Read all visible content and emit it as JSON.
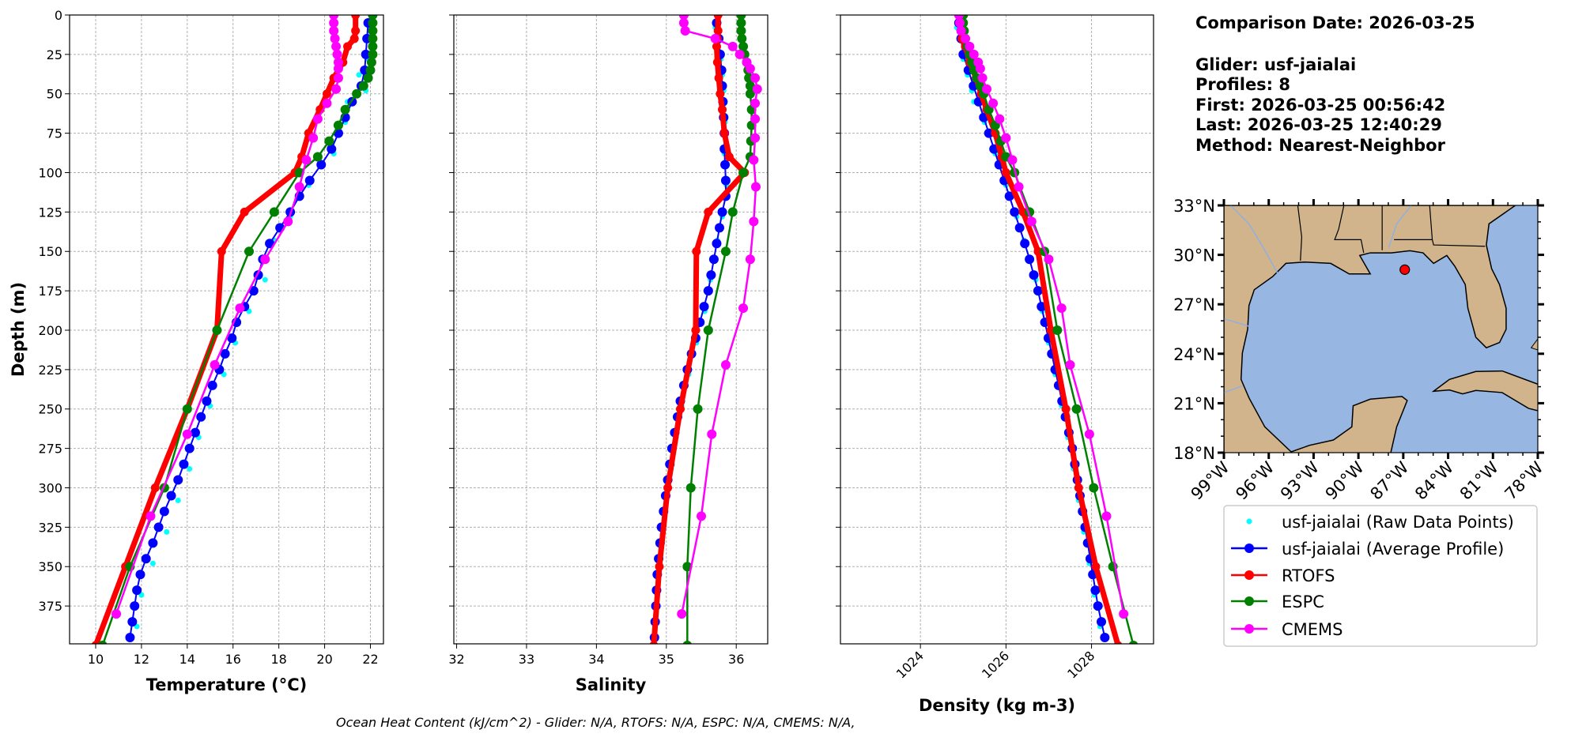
{
  "info": {
    "lines": [
      "Comparison Date: 2026-03-25",
      "",
      "Glider: usf-jaialai",
      "Profiles: 8",
      "First: 2026-03-25 00:56:42",
      "Last: 2026-03-25 12:40:29",
      "Method: Nearest-Neighbor"
    ]
  },
  "footnote": "Ocean Heat Content (kJ/cm^2) - Glider: N/A,  RTOFS: N/A,  ESPC: N/A,  CMEMS: N/A,",
  "colors": {
    "raw": "#00ffff",
    "average": "#0000ff",
    "rtofs": "#ff0000",
    "espc": "#008000",
    "cmems": "#ff00ff",
    "land": "#d2b48c",
    "water": "#97b6e1"
  },
  "legend": {
    "placement": "lower-right",
    "items": [
      {
        "key": "raw",
        "label": "usf-jaialai (Raw Data Points)",
        "style": "points"
      },
      {
        "key": "average",
        "label": "usf-jaialai (Average Profile)",
        "style": "line-marker"
      },
      {
        "key": "rtofs",
        "label": "RTOFS",
        "style": "line-marker"
      },
      {
        "key": "espc",
        "label": "ESPC",
        "style": "line-marker"
      },
      {
        "key": "cmems",
        "label": "CMEMS",
        "style": "line-marker"
      }
    ]
  },
  "map": {
    "type": "map",
    "lon_range": [
      -99,
      -78
    ],
    "lat_range": [
      18,
      33
    ],
    "lon_ticks": [
      "99°W",
      "96°W",
      "93°W",
      "90°W",
      "87°W",
      "84°W",
      "81°W",
      "78°W"
    ],
    "lat_ticks": [
      "18°N",
      "21°N",
      "24°N",
      "27°N",
      "30°N",
      "33°N"
    ],
    "glider_position": {
      "lon": -86.9,
      "lat": 29.1
    }
  },
  "chart_data": [
    {
      "type": "line",
      "panel": "temperature",
      "xlabel": "Temperature (°C)",
      "ylabel": "Depth (m)",
      "xlim": [
        8.86,
        22.57
      ],
      "ylim": [
        399,
        0
      ],
      "xticks": [
        10,
        12,
        14,
        16,
        18,
        20,
        22
      ],
      "yticks": [
        0,
        25,
        50,
        75,
        100,
        125,
        150,
        175,
        200,
        225,
        250,
        275,
        300,
        325,
        350,
        375
      ],
      "grid": true,
      "series": {
        "raw": {
          "depth": [
            8,
            28,
            38,
            48,
            55,
            68,
            88,
            108,
            128,
            143,
            168,
            188,
            208,
            228,
            248,
            268,
            288,
            308,
            328,
            348,
            368,
            388
          ],
          "values": [
            22.0,
            21.9,
            21.5,
            21.8,
            21.0,
            20.9,
            20.4,
            19.3,
            18.5,
            17.8,
            17.4,
            16.7,
            16.1,
            15.6,
            15.0,
            14.5,
            14.1,
            13.6,
            13.1,
            12.5,
            12.0,
            11.8
          ]
        },
        "average": {
          "depth": [
            5,
            15,
            25,
            35,
            45,
            55,
            65,
            75,
            85,
            95,
            105,
            115,
            125,
            135,
            145,
            155,
            165,
            175,
            185,
            195,
            205,
            215,
            225,
            235,
            245,
            255,
            265,
            275,
            285,
            295,
            305,
            315,
            325,
            335,
            345,
            355,
            365,
            375,
            385,
            395
          ],
          "values": [
            21.9,
            21.85,
            21.8,
            21.75,
            21.6,
            21.2,
            20.9,
            20.6,
            20.3,
            19.85,
            19.35,
            18.9,
            18.5,
            18.05,
            17.6,
            17.3,
            17.1,
            16.9,
            16.5,
            16.15,
            15.95,
            15.65,
            15.4,
            15.1,
            14.85,
            14.6,
            14.35,
            14.1,
            13.85,
            13.6,
            13.3,
            13.0,
            12.75,
            12.5,
            12.2,
            11.95,
            11.8,
            11.7,
            11.6,
            11.5
          ]
        },
        "rtofs": {
          "depth": [
            0,
            10,
            15,
            20,
            30,
            40,
            50,
            60,
            75,
            90,
            100,
            125,
            150,
            200,
            250,
            300,
            350,
            400
          ],
          "values": [
            21.35,
            21.35,
            21.3,
            21.0,
            20.8,
            20.4,
            20.1,
            19.8,
            19.3,
            19.0,
            18.7,
            16.5,
            15.5,
            15.3,
            14.0,
            12.6,
            11.3,
            10.0
          ]
        },
        "espc": {
          "depth": [
            0,
            5,
            10,
            15,
            20,
            25,
            30,
            35,
            40,
            45,
            50,
            60,
            70,
            80,
            90,
            100,
            125,
            150,
            200,
            250,
            300,
            350,
            400
          ],
          "values": [
            22.1,
            22.1,
            22.1,
            22.1,
            22.1,
            22.1,
            22.05,
            22.0,
            21.9,
            21.7,
            21.4,
            20.9,
            20.6,
            20.2,
            19.7,
            18.9,
            17.8,
            16.7,
            15.3,
            14.0,
            13.0,
            11.5,
            10.3
          ]
        },
        "cmems": {
          "depth": [
            0,
            5,
            10,
            15,
            20,
            25,
            30,
            34,
            40,
            47,
            56,
            66,
            78,
            92,
            109,
            131,
            155,
            186,
            222,
            266,
            318,
            380
          ],
          "values": [
            20.4,
            20.4,
            20.4,
            20.45,
            20.5,
            20.55,
            20.6,
            20.6,
            20.6,
            20.5,
            20.1,
            19.7,
            19.5,
            19.2,
            18.9,
            18.4,
            17.4,
            16.3,
            15.2,
            14.0,
            12.4,
            10.9
          ]
        }
      }
    },
    {
      "type": "line",
      "panel": "salinity",
      "xlabel": "Salinity",
      "xlim": [
        31.96,
        36.45
      ],
      "ylim": [
        399,
        0
      ],
      "xticks": [
        32,
        33,
        34,
        35,
        36
      ],
      "grid": true,
      "series": {
        "raw": {
          "depth": [
            8,
            28,
            38,
            48,
            55,
            68,
            88,
            108,
            128,
            143,
            168,
            188,
            208,
            228,
            248,
            268,
            288,
            308,
            328,
            348,
            368,
            388
          ],
          "values": [
            35.7,
            35.78,
            35.8,
            35.82,
            35.8,
            35.84,
            35.83,
            35.86,
            35.8,
            35.73,
            35.63,
            35.55,
            35.43,
            35.32,
            35.22,
            35.14,
            35.07,
            35.0,
            34.95,
            34.9,
            34.87,
            34.84
          ]
        },
        "average": {
          "depth": [
            5,
            15,
            25,
            35,
            45,
            55,
            65,
            75,
            85,
            95,
            105,
            115,
            125,
            135,
            145,
            155,
            165,
            175,
            185,
            195,
            205,
            215,
            225,
            235,
            245,
            255,
            265,
            275,
            285,
            295,
            305,
            315,
            325,
            335,
            345,
            355,
            365,
            375,
            385,
            395
          ],
          "values": [
            35.72,
            35.75,
            35.77,
            35.79,
            35.8,
            35.81,
            35.82,
            35.83,
            35.83,
            35.84,
            35.85,
            35.85,
            35.8,
            35.76,
            35.72,
            35.68,
            35.64,
            35.6,
            35.54,
            35.48,
            35.42,
            35.36,
            35.3,
            35.25,
            35.2,
            35.16,
            35.12,
            35.08,
            35.05,
            35.02,
            34.99,
            34.96,
            34.93,
            34.91,
            34.89,
            34.87,
            34.86,
            34.85,
            34.84,
            34.83
          ]
        },
        "rtofs": {
          "depth": [
            0,
            10,
            15,
            20,
            30,
            40,
            50,
            60,
            75,
            90,
            100,
            125,
            150,
            200,
            250,
            300,
            350,
            400
          ],
          "values": [
            35.74,
            35.74,
            35.73,
            35.72,
            35.73,
            35.75,
            35.77,
            35.8,
            35.83,
            35.9,
            36.12,
            35.6,
            35.43,
            35.42,
            35.2,
            35.02,
            34.9,
            34.82
          ]
        },
        "espc": {
          "depth": [
            0,
            5,
            10,
            15,
            20,
            25,
            30,
            35,
            40,
            45,
            50,
            60,
            70,
            80,
            90,
            100,
            125,
            150,
            200,
            250,
            300,
            350,
            400
          ],
          "values": [
            36.07,
            36.07,
            36.07,
            36.08,
            36.1,
            36.12,
            36.15,
            36.17,
            36.18,
            36.2,
            36.2,
            36.22,
            36.22,
            36.21,
            36.2,
            36.1,
            35.95,
            35.85,
            35.6,
            35.45,
            35.35,
            35.3,
            35.3
          ]
        },
        "cmems": {
          "depth": [
            0,
            5,
            10,
            15,
            20,
            25,
            30,
            34,
            40,
            47,
            56,
            66,
            78,
            92,
            109,
            131,
            155,
            186,
            222,
            266,
            318,
            380
          ],
          "values": [
            35.25,
            35.25,
            35.27,
            35.7,
            35.95,
            36.05,
            36.15,
            36.2,
            36.27,
            36.3,
            36.27,
            36.27,
            36.27,
            36.25,
            36.28,
            36.25,
            36.2,
            36.1,
            35.85,
            35.65,
            35.5,
            35.22
          ]
        }
      }
    },
    {
      "type": "line",
      "panel": "density",
      "xlabel": "Density (kg m-3)",
      "xlim": [
        1022.13,
        1029.45
      ],
      "ylim": [
        399,
        0
      ],
      "xticks": [
        1024,
        1026,
        1028
      ],
      "grid": true,
      "series": {
        "raw": {
          "depth": [
            8,
            28,
            38,
            48,
            55,
            68,
            88,
            108,
            128,
            143,
            168,
            188,
            208,
            228,
            248,
            268,
            288,
            308,
            328,
            348,
            368,
            388
          ],
          "values": [
            1024.85,
            1025.0,
            1025.1,
            1025.2,
            1025.25,
            1025.5,
            1025.75,
            1026.0,
            1026.25,
            1026.42,
            1026.7,
            1026.85,
            1027.0,
            1027.15,
            1027.3,
            1027.45,
            1027.58,
            1027.7,
            1027.82,
            1027.95,
            1028.07,
            1028.2
          ]
        },
        "average": {
          "depth": [
            5,
            15,
            25,
            35,
            45,
            55,
            65,
            75,
            85,
            95,
            105,
            115,
            125,
            135,
            145,
            155,
            165,
            175,
            185,
            195,
            205,
            215,
            225,
            235,
            245,
            255,
            265,
            275,
            285,
            295,
            305,
            315,
            325,
            335,
            345,
            355,
            365,
            375,
            385,
            395
          ],
          "values": [
            1024.9,
            1024.95,
            1025.0,
            1025.12,
            1025.24,
            1025.36,
            1025.48,
            1025.6,
            1025.72,
            1025.84,
            1025.96,
            1026.08,
            1026.2,
            1026.32,
            1026.44,
            1026.55,
            1026.65,
            1026.75,
            1026.83,
            1026.91,
            1026.99,
            1027.07,
            1027.15,
            1027.23,
            1027.31,
            1027.39,
            1027.47,
            1027.55,
            1027.61,
            1027.67,
            1027.73,
            1027.79,
            1027.85,
            1027.91,
            1027.97,
            1028.03,
            1028.09,
            1028.15,
            1028.23,
            1028.31
          ]
        },
        "rtofs": {
          "depth": [
            0,
            10,
            15,
            20,
            30,
            40,
            50,
            60,
            75,
            90,
            100,
            125,
            150,
            200,
            250,
            300,
            350,
            400
          ],
          "values": [
            1024.95,
            1024.95,
            1024.97,
            1025.05,
            1025.15,
            1025.3,
            1025.42,
            1025.55,
            1025.75,
            1025.9,
            1026.0,
            1026.4,
            1026.75,
            1027.05,
            1027.4,
            1027.7,
            1028.1,
            1028.62
          ]
        },
        "espc": {
          "depth": [
            0,
            5,
            10,
            15,
            20,
            25,
            30,
            35,
            40,
            45,
            50,
            60,
            70,
            80,
            90,
            100,
            125,
            150,
            200,
            250,
            300,
            350,
            400
          ],
          "values": [
            1025.0,
            1025.0,
            1025.02,
            1025.05,
            1025.1,
            1025.15,
            1025.2,
            1025.25,
            1025.32,
            1025.4,
            1025.48,
            1025.6,
            1025.75,
            1025.88,
            1026.0,
            1026.2,
            1026.55,
            1026.9,
            1027.2,
            1027.65,
            1028.05,
            1028.5,
            1028.98
          ]
        },
        "cmems": {
          "depth": [
            0,
            5,
            10,
            15,
            20,
            25,
            30,
            34,
            40,
            47,
            56,
            66,
            78,
            92,
            109,
            131,
            155,
            186,
            222,
            266,
            318,
            380
          ],
          "values": [
            1024.9,
            1024.92,
            1024.95,
            1025.05,
            1025.15,
            1025.25,
            1025.35,
            1025.4,
            1025.45,
            1025.55,
            1025.7,
            1025.85,
            1026.0,
            1026.15,
            1026.3,
            1026.6,
            1027.0,
            1027.3,
            1027.5,
            1027.95,
            1028.35,
            1028.75
          ]
        }
      }
    }
  ]
}
